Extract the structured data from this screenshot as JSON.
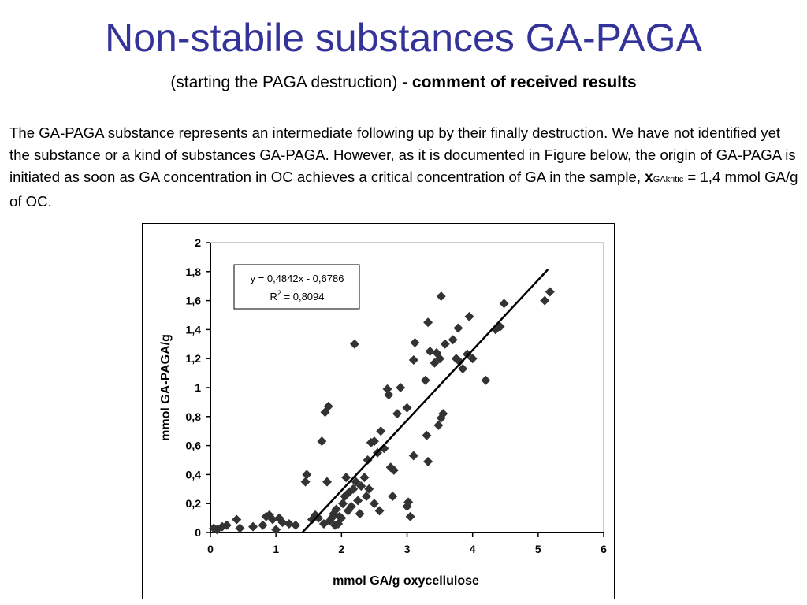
{
  "title": "Non-stabile substances GA-PAGA",
  "subtitle": {
    "normal": "(starting the PAGA destruction) -",
    "bold": "comment of received results"
  },
  "paragraph": {
    "text": "The GA-PAGA substance represents an intermediate following up by their finally destruction. We have not identified yet the substance or a kind of substances GA-PAGA. However, as it is documented in Figure below, the origin of GA-PAGA is initiated as soon as GA concentration in OC achieves a critical concentration of GA in the sample,",
    "x_symbol": "x",
    "x_subscript": "GAkritic",
    "tail": "= 1,4 mmol GA/g of OC."
  },
  "colors": {
    "title": "#333399",
    "marker": "#333333",
    "text": "#000000"
  },
  "chart_data": {
    "type": "scatter",
    "xlabel": "mmol GA/g oxycellulose",
    "ylabel": "mmol  GA-PAGA/g",
    "xlim": [
      0,
      6
    ],
    "ylim": [
      0,
      2
    ],
    "x_ticks": [
      "0",
      "1",
      "2",
      "3",
      "4",
      "5",
      "6"
    ],
    "y_ticks": [
      "0",
      "0,2",
      "0,4",
      "0,6",
      "0,8",
      "1",
      "1,2",
      "1,4",
      "1,6",
      "1,8",
      "2"
    ],
    "grid": false,
    "marker": "diamond",
    "trendline": {
      "equation": "y = 0,4842x - 0,6786",
      "r2_prefix": "R",
      "r2_sup": "2",
      "r2_value": " = 0,8094",
      "slope": 0.4842,
      "intercept": -0.6786,
      "x_range": [
        1.4,
        5.15
      ]
    },
    "points": [
      [
        0.05,
        0.03
      ],
      [
        0.1,
        0.02
      ],
      [
        0.18,
        0.04
      ],
      [
        0.25,
        0.05
      ],
      [
        0.4,
        0.09
      ],
      [
        0.45,
        0.03
      ],
      [
        0.65,
        0.04
      ],
      [
        0.8,
        0.05
      ],
      [
        0.85,
        0.11
      ],
      [
        0.9,
        0.12
      ],
      [
        0.95,
        0.09
      ],
      [
        1.0,
        0.02
      ],
      [
        1.05,
        0.1
      ],
      [
        1.1,
        0.07
      ],
      [
        1.2,
        0.06
      ],
      [
        1.3,
        0.05
      ],
      [
        1.45,
        0.35
      ],
      [
        1.47,
        0.4
      ],
      [
        1.55,
        0.09
      ],
      [
        1.6,
        0.12
      ],
      [
        1.65,
        0.1
      ],
      [
        1.7,
        0.63
      ],
      [
        1.73,
        0.06
      ],
      [
        1.75,
        0.83
      ],
      [
        1.78,
        0.35
      ],
      [
        1.8,
        0.87
      ],
      [
        1.82,
        0.08
      ],
      [
        1.85,
        0.1
      ],
      [
        1.88,
        0.13
      ],
      [
        1.9,
        0.05
      ],
      [
        1.92,
        0.16
      ],
      [
        1.95,
        0.06
      ],
      [
        1.97,
        0.11
      ],
      [
        2.0,
        0.1
      ],
      [
        2.02,
        0.2
      ],
      [
        2.05,
        0.25
      ],
      [
        2.07,
        0.38
      ],
      [
        2.1,
        0.15
      ],
      [
        2.12,
        0.28
      ],
      [
        2.15,
        0.18
      ],
      [
        2.18,
        0.3
      ],
      [
        2.2,
        1.3
      ],
      [
        2.22,
        0.35
      ],
      [
        2.25,
        0.22
      ],
      [
        2.28,
        0.13
      ],
      [
        2.3,
        0.32
      ],
      [
        2.35,
        0.38
      ],
      [
        2.38,
        0.25
      ],
      [
        2.4,
        0.5
      ],
      [
        2.42,
        0.3
      ],
      [
        2.45,
        0.62
      ],
      [
        2.5,
        0.63
      ],
      [
        2.5,
        0.2
      ],
      [
        2.55,
        0.55
      ],
      [
        2.58,
        0.15
      ],
      [
        2.6,
        0.7
      ],
      [
        2.65,
        0.58
      ],
      [
        2.7,
        0.99
      ],
      [
        2.72,
        0.95
      ],
      [
        2.75,
        0.45
      ],
      [
        2.78,
        0.25
      ],
      [
        2.8,
        0.43
      ],
      [
        2.85,
        0.82
      ],
      [
        2.9,
        1.0
      ],
      [
        3.0,
        0.86
      ],
      [
        3.0,
        0.18
      ],
      [
        3.02,
        0.21
      ],
      [
        3.05,
        0.11
      ],
      [
        3.1,
        1.19
      ],
      [
        3.1,
        0.53
      ],
      [
        3.12,
        1.31
      ],
      [
        3.28,
        1.05
      ],
      [
        3.3,
        0.67
      ],
      [
        3.32,
        1.45
      ],
      [
        3.32,
        0.49
      ],
      [
        3.35,
        1.25
      ],
      [
        3.42,
        1.17
      ],
      [
        3.45,
        1.24
      ],
      [
        3.48,
        0.74
      ],
      [
        3.5,
        1.2
      ],
      [
        3.52,
        1.63
      ],
      [
        3.52,
        0.79
      ],
      [
        3.55,
        0.82
      ],
      [
        3.58,
        1.3
      ],
      [
        3.7,
        1.33
      ],
      [
        3.75,
        1.2
      ],
      [
        3.78,
        1.41
      ],
      [
        3.8,
        1.18
      ],
      [
        3.85,
        1.13
      ],
      [
        3.92,
        1.23
      ],
      [
        3.95,
        1.49
      ],
      [
        4.0,
        1.2
      ],
      [
        4.2,
        1.05
      ],
      [
        4.35,
        1.4
      ],
      [
        4.42,
        1.42
      ],
      [
        4.48,
        1.58
      ],
      [
        5.1,
        1.6
      ],
      [
        5.18,
        1.66
      ]
    ]
  }
}
